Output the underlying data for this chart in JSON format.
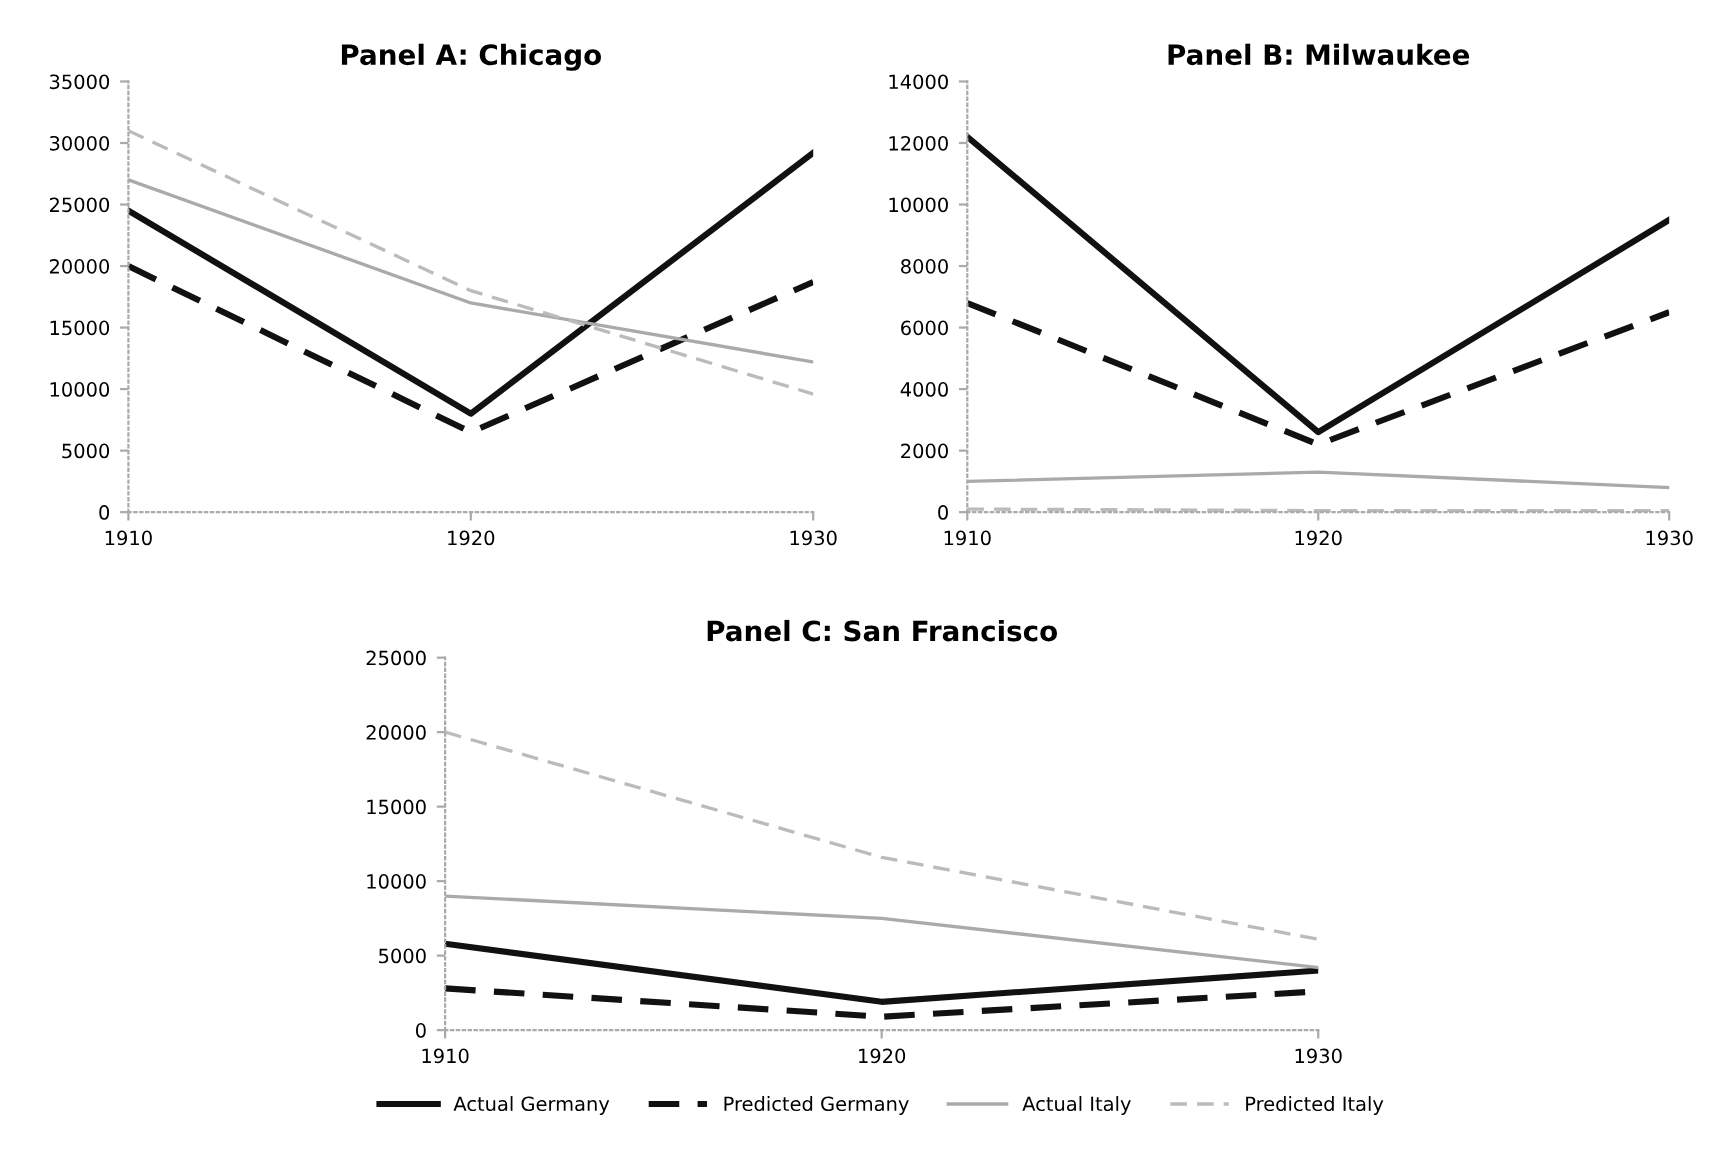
{
  "chart_data": [
    {
      "type": "line",
      "title": "Panel A: Chicago",
      "x": [
        1910,
        1920,
        1930
      ],
      "xlim": [
        1910,
        1930
      ],
      "xticks": [
        1910,
        1920,
        1930
      ],
      "ylim": [
        0,
        35000
      ],
      "yticks": [
        0,
        5000,
        10000,
        15000,
        20000,
        25000,
        30000,
        35000
      ],
      "grid": false,
      "legend": false,
      "series": [
        {
          "color": "#111111",
          "line_style": "solid",
          "values": [
            24500,
            8000,
            29200
          ]
        },
        {
          "color": "#111111",
          "line_style": "dashed",
          "values": [
            20000,
            6500,
            18700
          ]
        },
        {
          "color": "#aaaaaa",
          "line_style": "solid",
          "values": [
            27000,
            17000,
            12200
          ]
        },
        {
          "color": "#bbbbbb",
          "line_style": "dashed",
          "values": [
            31000,
            18000,
            9600
          ]
        }
      ]
    },
    {
      "type": "line",
      "title": "Panel B: Milwaukee",
      "x": [
        1910,
        1920,
        1930
      ],
      "xlim": [
        1910,
        1930
      ],
      "xticks": [
        1910,
        1920,
        1930
      ],
      "ylim": [
        0,
        14000
      ],
      "yticks": [
        0,
        2000,
        4000,
        6000,
        8000,
        10000,
        12000,
        14000
      ],
      "grid": false,
      "legend": false,
      "series": [
        {
          "color": "#111111",
          "line_style": "solid",
          "values": [
            12200,
            2600,
            9500
          ]
        },
        {
          "color": "#111111",
          "line_style": "dashed",
          "values": [
            6800,
            2200,
            6500
          ]
        },
        {
          "color": "#aaaaaa",
          "line_style": "solid",
          "values": [
            1000,
            1300,
            800
          ]
        },
        {
          "color": "#bbbbbb",
          "line_style": "dashed",
          "values": [
            100,
            50,
            50
          ]
        }
      ]
    },
    {
      "type": "line",
      "title": "Panel C: San Francisco",
      "x": [
        1910,
        1920,
        1930
      ],
      "xlim": [
        1910,
        1930
      ],
      "xticks": [
        1910,
        1920,
        1930
      ],
      "ylim": [
        0,
        25000
      ],
      "yticks": [
        0,
        5000,
        10000,
        15000,
        20000,
        25000
      ],
      "grid": false,
      "legend": "bottom",
      "series": [
        {
          "name": "Actual Germany",
          "color": "#111111",
          "line_style": "solid",
          "values": [
            5800,
            1900,
            4000
          ]
        },
        {
          "name": "Predicted Germany",
          "color": "#111111",
          "line_style": "dashed",
          "values": [
            2800,
            900,
            2600
          ]
        },
        {
          "name": "Actual Italy",
          "color": "#aaaaaa",
          "line_style": "solid",
          "values": [
            9000,
            7500,
            4200
          ]
        },
        {
          "name": "Predicted Italy",
          "color": "#bbbbbb",
          "line_style": "dashed",
          "values": [
            20000,
            11600,
            6100
          ]
        }
      ]
    }
  ]
}
